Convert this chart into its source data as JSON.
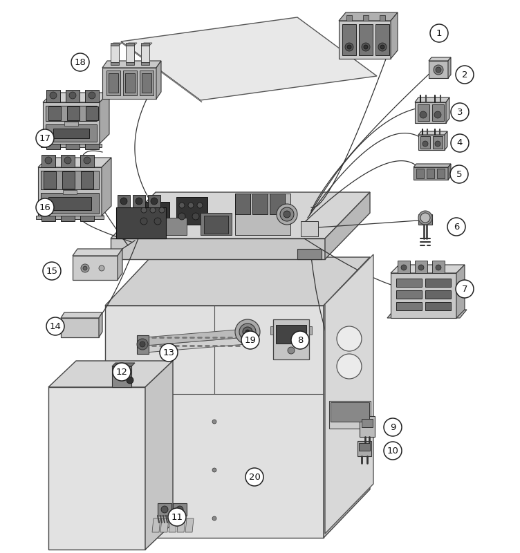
{
  "bg_color": "#ffffff",
  "lc": "#2a2a2a",
  "callouts": [
    [
      "1",
      635,
      48
    ],
    [
      "2",
      672,
      108
    ],
    [
      "3",
      665,
      162
    ],
    [
      "4",
      665,
      207
    ],
    [
      "5",
      664,
      252
    ],
    [
      "6",
      660,
      328
    ],
    [
      "7",
      672,
      418
    ],
    [
      "8",
      434,
      492
    ],
    [
      "9",
      568,
      618
    ],
    [
      "10",
      568,
      652
    ],
    [
      "11",
      256,
      748
    ],
    [
      "12",
      176,
      538
    ],
    [
      "13",
      244,
      510
    ],
    [
      "14",
      80,
      472
    ],
    [
      "15",
      75,
      392
    ],
    [
      "16",
      65,
      300
    ],
    [
      "17",
      65,
      200
    ],
    [
      "18",
      116,
      90
    ],
    [
      "19",
      362,
      492
    ],
    [
      "20",
      368,
      690
    ]
  ]
}
